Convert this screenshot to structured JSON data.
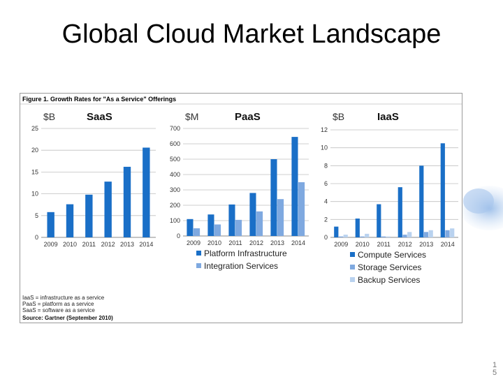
{
  "slide": {
    "title": "Global Cloud Market Landscape",
    "page_number": "1\n5"
  },
  "figure": {
    "caption": "Figure 1. Growth Rates for \"As a Service\" Offerings",
    "notes": [
      "IaaS = infrastructure as a service",
      "PaaS = platform as a service",
      "SaaS = software as a service"
    ],
    "source": "Source: Gartner (September 2010)"
  },
  "colors": {
    "dark_blue": "#1a6fc7",
    "mid_blue": "#7fa9e0",
    "light_blue": "#b9d2ef",
    "grid": "#bfbfbf"
  },
  "chart_data": [
    {
      "type": "bar",
      "title": "SaaS",
      "unit": "$B",
      "categories": [
        "2009",
        "2010",
        "2011",
        "2012",
        "2013",
        "2014"
      ],
      "series": [
        {
          "values": [
            5.8,
            7.6,
            9.8,
            12.8,
            16.2,
            20.6
          ]
        }
      ],
      "ylim": [
        0,
        25
      ],
      "yticks": [
        0,
        5,
        10,
        15,
        20,
        25
      ],
      "grid": true
    },
    {
      "type": "bar",
      "title": "PaaS",
      "unit": "$M",
      "categories": [
        "2009",
        "2010",
        "2011",
        "2012",
        "2013",
        "2014"
      ],
      "series": [
        {
          "name": "Platform Infrastructure",
          "values": [
            110,
            140,
            205,
            280,
            500,
            645
          ]
        },
        {
          "name": "Integration Services",
          "values": [
            50,
            75,
            105,
            160,
            240,
            350
          ]
        }
      ],
      "ylim": [
        0,
        700
      ],
      "yticks": [
        0,
        100,
        200,
        300,
        400,
        500,
        600,
        700
      ],
      "grid": true,
      "legend": "bottom"
    },
    {
      "type": "bar",
      "title": "IaaS",
      "unit": "$B",
      "categories": [
        "2009",
        "2010",
        "2011",
        "2012",
        "2013",
        "2014"
      ],
      "series": [
        {
          "name": "Compute Services",
          "values": [
            1.2,
            2.1,
            3.7,
            5.6,
            8.0,
            10.5
          ]
        },
        {
          "name": "Storage Services",
          "values": [
            0.1,
            0.1,
            0.1,
            0.3,
            0.6,
            0.8
          ]
        },
        {
          "name": "Backup Services",
          "values": [
            0.3,
            0.4,
            0.1,
            0.6,
            0.8,
            1.0
          ]
        }
      ],
      "ylim": [
        0,
        12
      ],
      "yticks": [
        0,
        2,
        4,
        6,
        8,
        10,
        12
      ],
      "grid": true,
      "legend": "bottom"
    }
  ]
}
